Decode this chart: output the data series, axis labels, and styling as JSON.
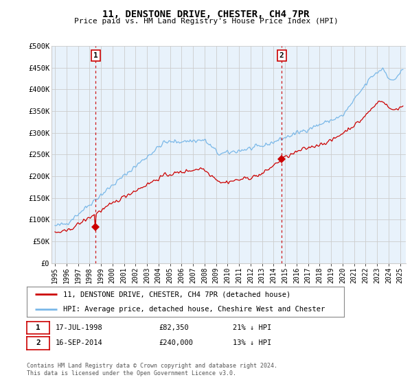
{
  "title": "11, DENSTONE DRIVE, CHESTER, CH4 7PR",
  "subtitle": "Price paid vs. HM Land Registry's House Price Index (HPI)",
  "ylim": [
    0,
    500000
  ],
  "yticks": [
    0,
    50000,
    100000,
    150000,
    200000,
    250000,
    300000,
    350000,
    400000,
    450000,
    500000
  ],
  "ytick_labels": [
    "£0",
    "£50K",
    "£100K",
    "£150K",
    "£200K",
    "£250K",
    "£300K",
    "£350K",
    "£400K",
    "£450K",
    "£500K"
  ],
  "xlim_start": 1994.7,
  "xlim_end": 2025.5,
  "hpi_color": "#7ab8e8",
  "hpi_fill": "#ddeeff",
  "price_color": "#cc0000",
  "annotation_color": "#cc0000",
  "grid_color": "#cccccc",
  "bg_color": "#ffffff",
  "plot_bg": "#e8f2fb",
  "sale1_x": 1998.54,
  "sale1_y": 82350,
  "sale1_label": "1",
  "sale1_date": "17-JUL-1998",
  "sale1_price": "£82,350",
  "sale1_hpi": "21% ↓ HPI",
  "sale2_x": 2014.71,
  "sale2_y": 240000,
  "sale2_label": "2",
  "sale2_date": "16-SEP-2014",
  "sale2_price": "£240,000",
  "sale2_hpi": "13% ↓ HPI",
  "footer": "Contains HM Land Registry data © Crown copyright and database right 2024.\nThis data is licensed under the Open Government Licence v3.0.",
  "legend_line1": "11, DENSTONE DRIVE, CHESTER, CH4 7PR (detached house)",
  "legend_line2": "HPI: Average price, detached house, Cheshire West and Chester"
}
